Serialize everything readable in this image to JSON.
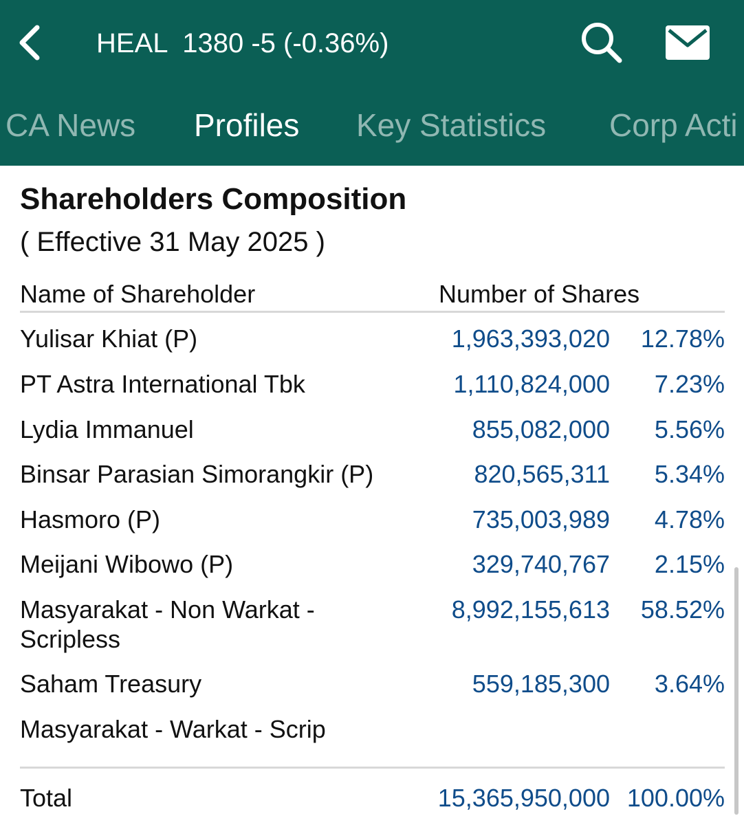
{
  "header": {
    "ticker": "HEAL  1380 -5 (-0.36%)",
    "background_color": "#0b5f55",
    "icons": [
      "back-chevron-icon",
      "search-icon",
      "mail-icon"
    ]
  },
  "tabs": [
    {
      "label": "CA News",
      "active": false
    },
    {
      "label": "Profiles",
      "active": true
    },
    {
      "label": "Key Statistics",
      "active": false
    },
    {
      "label": "Corp Acti",
      "active": false
    }
  ],
  "section": {
    "title": "Shareholders Composition",
    "subtitle": "( Effective 31 May 2025 )",
    "col_name": "Name of Shareholder",
    "col_shares": "Number of Shares"
  },
  "shareholders": [
    {
      "name": "Yulisar Khiat (P)",
      "shares": "1,963,393,020",
      "percent": "12.78%"
    },
    {
      "name": "PT Astra International Tbk",
      "shares": "1,110,824,000",
      "percent": "7.23%"
    },
    {
      "name": "Lydia Immanuel",
      "shares": "855,082,000",
      "percent": "5.56%"
    },
    {
      "name": "Binsar Parasian Simorangkir (P)",
      "shares": "820,565,311",
      "percent": "5.34%"
    },
    {
      "name": "Hasmoro (P)",
      "shares": "735,003,989",
      "percent": "4.78%"
    },
    {
      "name": "Meijani Wibowo (P)",
      "shares": "329,740,767",
      "percent": "2.15%"
    },
    {
      "name": "Masyarakat - Non Warkat - Scripless",
      "shares": "8,992,155,613",
      "percent": "58.52%"
    },
    {
      "name": "Saham Treasury",
      "shares": "559,185,300",
      "percent": "3.64%"
    },
    {
      "name": "Masyarakat - Warkat - Scrip",
      "shares": "",
      "percent": ""
    }
  ],
  "total": {
    "label": "Total",
    "shares": "15,365,950,000",
    "percent": "100.00%"
  },
  "value_color": "#0f4c8a"
}
